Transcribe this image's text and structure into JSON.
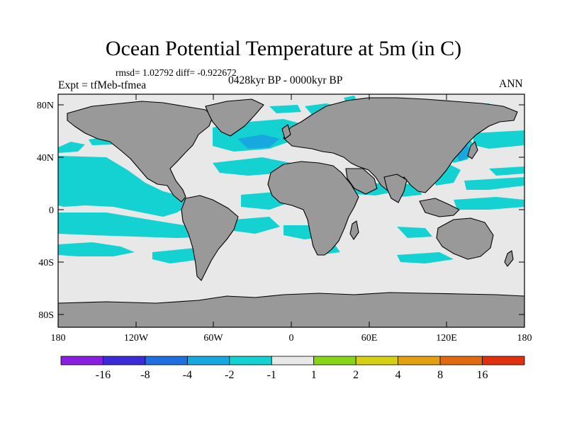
{
  "title": "Ocean Potential Temperature at 5m (in C)",
  "stats": "rmsd= 1.02792  diff= -0.922672",
  "expt": "Expt = tfMeb-tfmea",
  "period": "0428kyr BP - 0000kyr BP",
  "season": "ANN",
  "lat_ticks": [
    "80N",
    "40N",
    "0",
    "40S",
    "80S"
  ],
  "lon_ticks": [
    "180",
    "120W",
    "60W",
    "0",
    "60E",
    "120E",
    "180"
  ],
  "colorbar": {
    "labels": [
      "-16",
      "-8",
      "-4",
      "-2",
      "-1",
      "1",
      "2",
      "4",
      "8",
      "16"
    ],
    "colors": [
      "#8a1ee0",
      "#3a2ad8",
      "#1f6fe0",
      "#18a8e0",
      "#14d2d2",
      "#e8e8e8",
      "#88d418",
      "#d6d014",
      "#e4a010",
      "#e06a10",
      "#e03010"
    ]
  },
  "colors": {
    "land": "#999999",
    "ocean_neutral": "#e8e8e8",
    "ocean_cool": "#14d2d2",
    "ocean_cooler": "#18a8e0"
  }
}
